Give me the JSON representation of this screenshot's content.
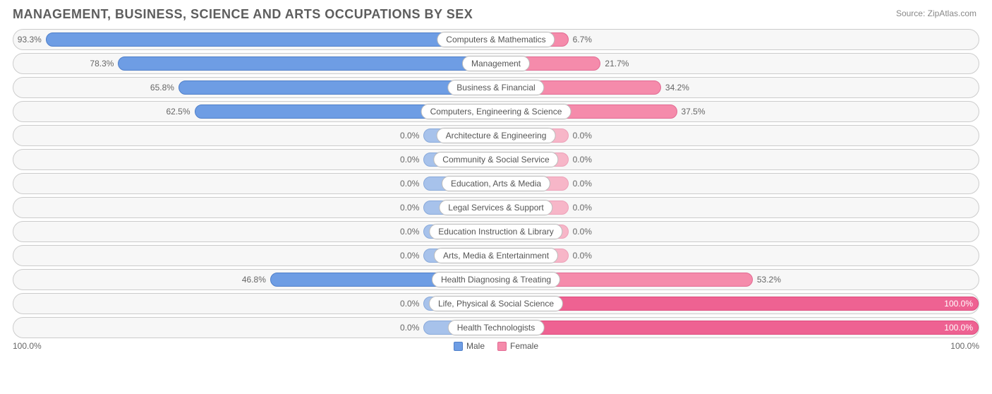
{
  "title": "MANAGEMENT, BUSINESS, SCIENCE AND ARTS OCCUPATIONS BY SEX",
  "source_prefix": "Source: ",
  "source_name": "ZipAtlas.com",
  "axis": {
    "left": "100.0%",
    "right": "100.0%"
  },
  "legend": {
    "male": "Male",
    "female": "Female"
  },
  "colors": {
    "male": "#6e9de4",
    "male_light": "#a7c2eb",
    "female": "#f58bab",
    "female_light": "#f7b6c8",
    "female_strong": "#ee6292",
    "row_bg": "#f7f7f7",
    "row_border": "#cccccc",
    "text": "#666666",
    "title_text": "#5d5d5d"
  },
  "chart": {
    "type": "diverging-bar",
    "min_bar_pct": 15,
    "rows": [
      {
        "category": "Computers & Mathematics",
        "male": 93.3,
        "male_label": "93.3%",
        "female": 6.7,
        "female_label": "6.7%",
        "style": "normal"
      },
      {
        "category": "Management",
        "male": 78.3,
        "male_label": "78.3%",
        "female": 21.7,
        "female_label": "21.7%",
        "style": "normal"
      },
      {
        "category": "Business & Financial",
        "male": 65.8,
        "male_label": "65.8%",
        "female": 34.2,
        "female_label": "34.2%",
        "style": "normal"
      },
      {
        "category": "Computers, Engineering & Science",
        "male": 62.5,
        "male_label": "62.5%",
        "female": 37.5,
        "female_label": "37.5%",
        "style": "normal"
      },
      {
        "category": "Architecture & Engineering",
        "male": 0.0,
        "male_label": "0.0%",
        "female": 0.0,
        "female_label": "0.0%",
        "style": "light"
      },
      {
        "category": "Community & Social Service",
        "male": 0.0,
        "male_label": "0.0%",
        "female": 0.0,
        "female_label": "0.0%",
        "style": "light"
      },
      {
        "category": "Education, Arts & Media",
        "male": 0.0,
        "male_label": "0.0%",
        "female": 0.0,
        "female_label": "0.0%",
        "style": "light"
      },
      {
        "category": "Legal Services & Support",
        "male": 0.0,
        "male_label": "0.0%",
        "female": 0.0,
        "female_label": "0.0%",
        "style": "light"
      },
      {
        "category": "Education Instruction & Library",
        "male": 0.0,
        "male_label": "0.0%",
        "female": 0.0,
        "female_label": "0.0%",
        "style": "light"
      },
      {
        "category": "Arts, Media & Entertainment",
        "male": 0.0,
        "male_label": "0.0%",
        "female": 0.0,
        "female_label": "0.0%",
        "style": "light"
      },
      {
        "category": "Health Diagnosing & Treating",
        "male": 46.8,
        "male_label": "46.8%",
        "female": 53.2,
        "female_label": "53.2%",
        "style": "normal"
      },
      {
        "category": "Life, Physical & Social Science",
        "male": 0.0,
        "male_label": "0.0%",
        "female": 100.0,
        "female_label": "100.0%",
        "style": "female-strong"
      },
      {
        "category": "Health Technologists",
        "male": 0.0,
        "male_label": "0.0%",
        "female": 100.0,
        "female_label": "100.0%",
        "style": "female-strong"
      }
    ]
  }
}
